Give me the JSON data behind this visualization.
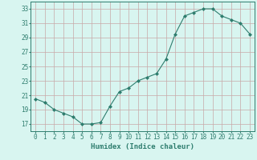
{
  "x": [
    0,
    1,
    2,
    3,
    4,
    5,
    6,
    7,
    8,
    9,
    10,
    11,
    12,
    13,
    14,
    15,
    16,
    17,
    18,
    19,
    20,
    21,
    22,
    23
  ],
  "y": [
    20.5,
    20.0,
    19.0,
    18.5,
    18.0,
    17.0,
    17.0,
    17.2,
    19.5,
    21.5,
    22.0,
    23.0,
    23.5,
    24.0,
    26.0,
    29.5,
    32.0,
    32.5,
    33.0,
    33.0,
    32.0,
    31.5,
    31.0,
    29.5
  ],
  "xlabel": "Humidex (Indice chaleur)",
  "ylabel": "",
  "xlim": [
    -0.5,
    23.5
  ],
  "ylim": [
    16,
    34
  ],
  "yticks": [
    17,
    19,
    21,
    23,
    25,
    27,
    29,
    31,
    33
  ],
  "xticks": [
    0,
    1,
    2,
    3,
    4,
    5,
    6,
    7,
    8,
    9,
    10,
    11,
    12,
    13,
    14,
    15,
    16,
    17,
    18,
    19,
    20,
    21,
    22,
    23
  ],
  "line_color": "#2e7d6e",
  "marker": "D",
  "marker_size": 2.0,
  "bg_color": "#d8f5f0",
  "grid_color": "#c8e8e0",
  "label_fontsize": 6.5,
  "tick_fontsize": 5.5
}
